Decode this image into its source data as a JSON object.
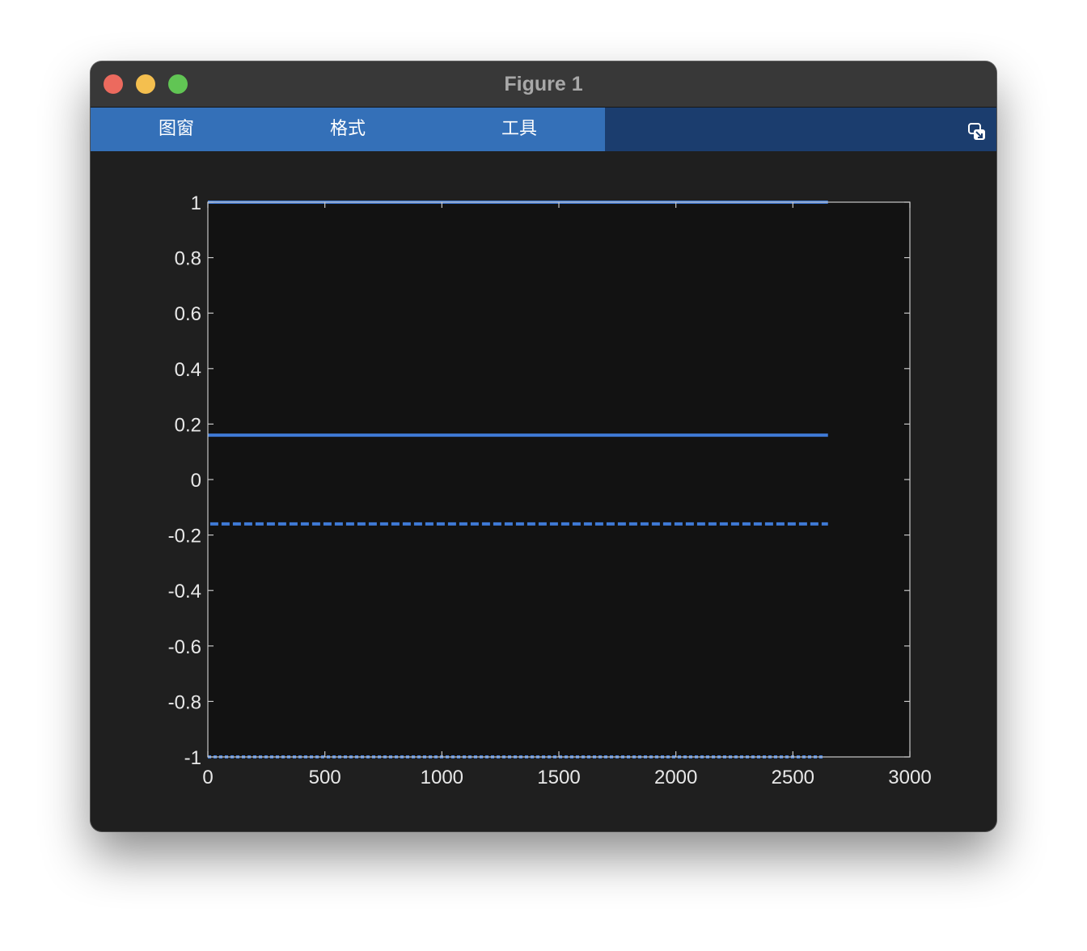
{
  "window": {
    "title": "Figure 1"
  },
  "toolbar": {
    "tabs": [
      {
        "label": "图窗"
      },
      {
        "label": "格式"
      },
      {
        "label": "工具"
      }
    ],
    "undock_icon": "undock-icon"
  },
  "colors": {
    "line": "#3f7ad6",
    "axes_bg": "#121212",
    "axes_edge": "#c8c8c8",
    "tick_text": "#e8e8e8",
    "tabs_active": "#3470b8",
    "toolbar_bg": "#1b3d6e"
  },
  "chart_data": {
    "type": "line",
    "title": "",
    "xlabel": "",
    "ylabel": "",
    "xlim": [
      0,
      3000
    ],
    "ylim": [
      -1,
      1
    ],
    "xticks": [
      "0",
      "500",
      "1000",
      "1500",
      "2000",
      "2500",
      "3000"
    ],
    "yticks": [
      "1",
      "0.8",
      "0.6",
      "0.4",
      "0.2",
      "0",
      "-0.2",
      "-0.4",
      "-0.6",
      "-0.8",
      "-1"
    ],
    "grid": false,
    "series": [
      {
        "style": "solid",
        "x": [
          0,
          2650
        ],
        "y": [
          1,
          1
        ]
      },
      {
        "style": "solid",
        "x": [
          0,
          2650
        ],
        "y": [
          0.16,
          0.16
        ]
      },
      {
        "style": "dashed",
        "x": [
          10,
          2650
        ],
        "y": [
          -0.16,
          -0.16
        ]
      },
      {
        "style": "dotted",
        "x": [
          0,
          2630
        ],
        "y": [
          -1,
          -1
        ]
      }
    ]
  }
}
